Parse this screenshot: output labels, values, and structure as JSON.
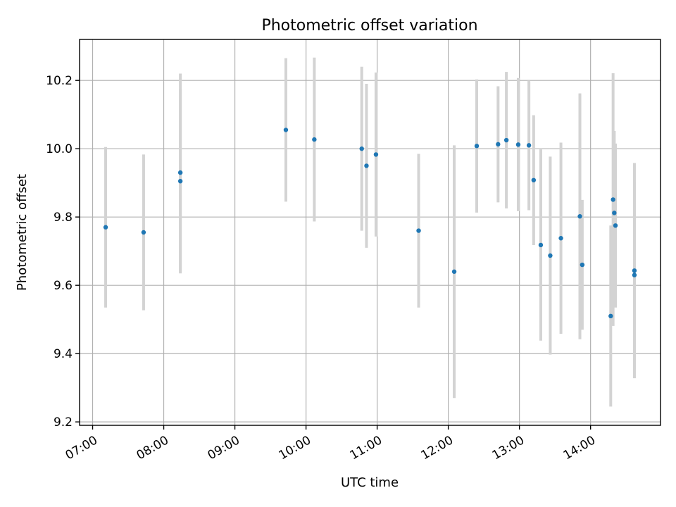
{
  "chart_data": {
    "type": "scatter",
    "title": "Photometric offset variation",
    "xlabel": "UTC time",
    "ylabel": "Photometric offset",
    "x_ticks": [
      "07:00",
      "08:00",
      "09:00",
      "10:00",
      "11:00",
      "12:00",
      "13:00",
      "14:00"
    ],
    "y_ticks": [
      "9.2",
      "9.4",
      "9.6",
      "9.8",
      "10.0",
      "10.2"
    ],
    "xlim": [
      "06:49",
      "14:59"
    ],
    "ylim": [
      9.19,
      10.32
    ],
    "grid": true,
    "colors": {
      "points": "#1f77b4",
      "error_bars": "#d3d3d3"
    },
    "series": [
      {
        "x": [
          "07:11",
          "07:43",
          "08:14",
          "08:14",
          "09:43",
          "10:07",
          "10:47",
          "10:51",
          "10:59",
          "11:35",
          "12:05",
          "12:24",
          "12:42",
          "12:49",
          "12:59",
          "13:08",
          "13:12",
          "13:18",
          "13:26",
          "13:35",
          "13:51",
          "13:53",
          "14:17",
          "14:19",
          "14:20",
          "14:21",
          "14:37",
          "14:37"
        ],
        "y": [
          9.77,
          9.755,
          9.93,
          9.905,
          10.055,
          10.027,
          10.0,
          9.95,
          9.983,
          9.76,
          9.64,
          10.008,
          10.013,
          10.025,
          10.012,
          10.01,
          9.908,
          9.718,
          9.687,
          9.738,
          9.802,
          9.66,
          9.51,
          9.851,
          9.812,
          9.775,
          9.643,
          9.63
        ],
        "yerr": [
          0.235,
          0.228,
          0.29,
          0.27,
          0.21,
          0.24,
          0.24,
          0.24,
          0.24,
          0.225,
          0.37,
          0.195,
          0.17,
          0.2,
          0.195,
          0.19,
          0.19,
          0.28,
          0.29,
          0.28,
          0.36,
          0.19,
          0.265,
          0.37,
          0.24,
          0.24,
          0.315,
          0.275
        ]
      }
    ]
  }
}
